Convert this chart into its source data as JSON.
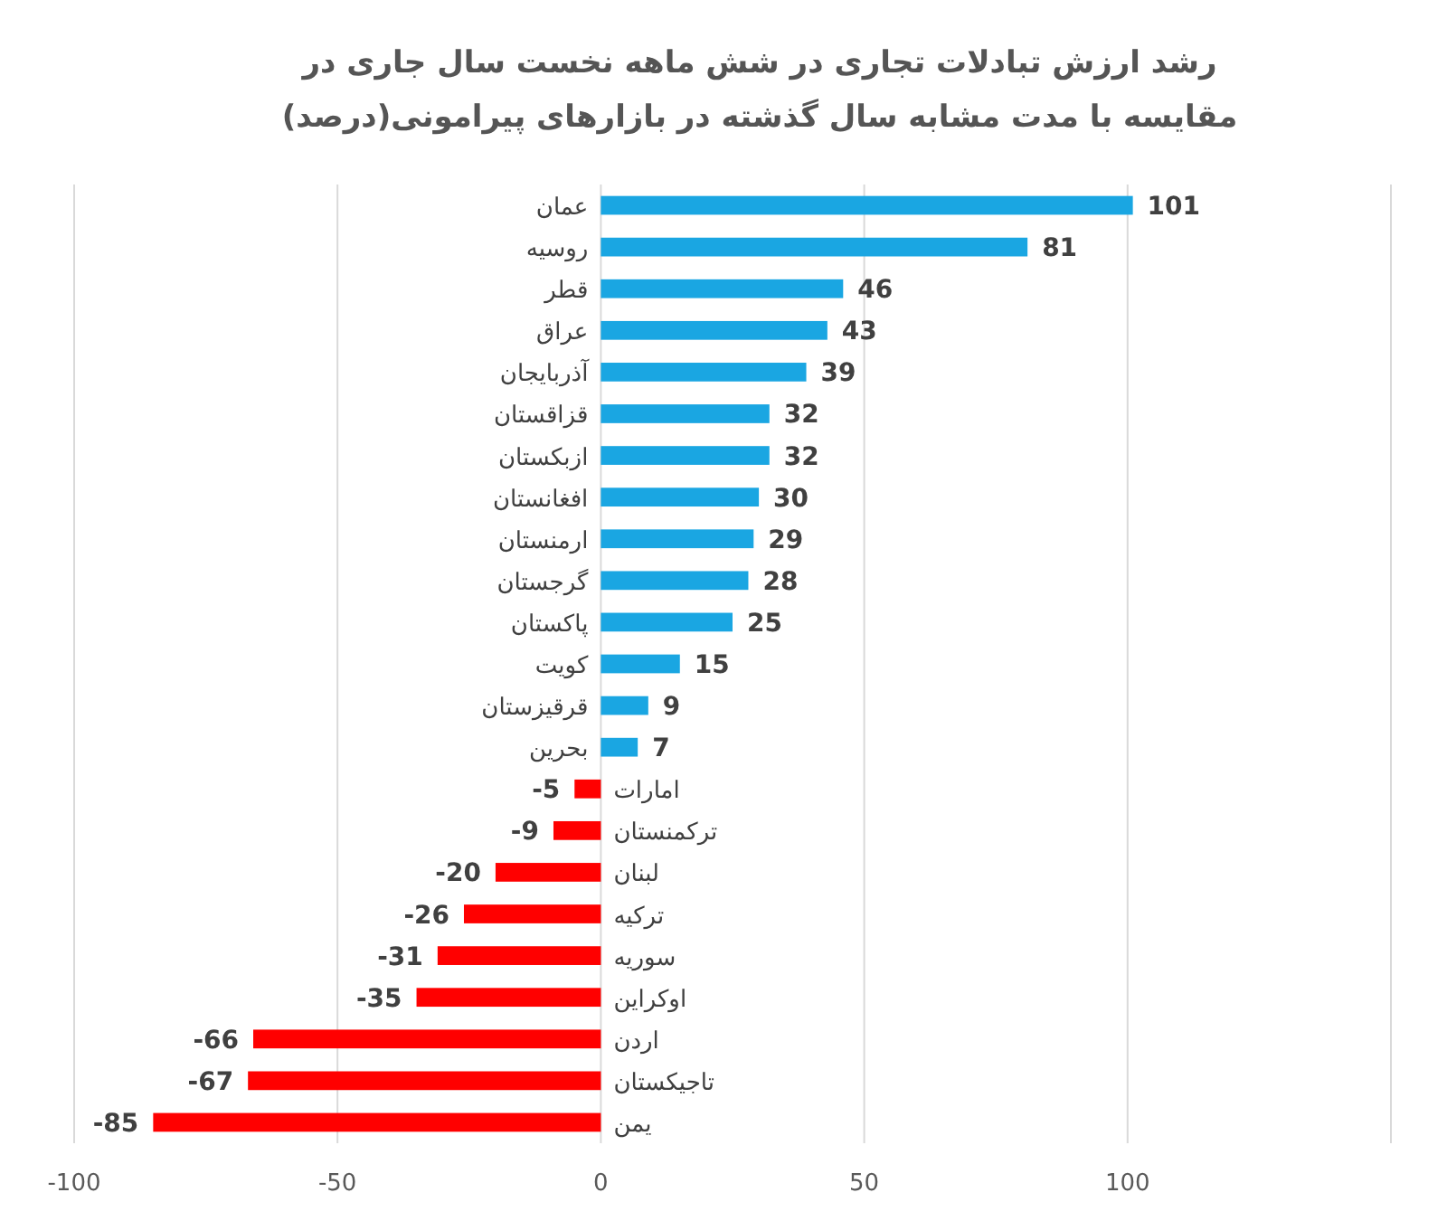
{
  "chart_data": {
    "type": "bar",
    "orientation": "horizontal",
    "title": "رشد ارزش تبادلات تجاری در شش ماهه نخست سال جاری در مقایسه با مدت مشابه سال گذشته در بازارهای پیرامونی(درصد)",
    "categories": [
      "عمان",
      "روسیه",
      "قطر",
      "عراق",
      "آذربایجان",
      "قزاقستان",
      "ازبکستان",
      "افغانستان",
      "ارمنستان",
      "گرجستان",
      "پاکستان",
      "کویت",
      "قرقیزستان",
      "بحرین",
      "امارات",
      "ترکمنستان",
      "لبنان",
      "ترکیه",
      "سوریه",
      "اوکراین",
      "اردن",
      "تاجیکستان",
      "یمن"
    ],
    "values": [
      101,
      81,
      46,
      43,
      39,
      32,
      32,
      30,
      29,
      28,
      25,
      15,
      9,
      7,
      -5,
      -9,
      -20,
      -26,
      -31,
      -35,
      -66,
      -67,
      -85
    ],
    "colors": [
      "#1aa6e2",
      "#1aa6e2",
      "#1aa6e2",
      "#1aa6e2",
      "#1aa6e2",
      "#1aa6e2",
      "#1aa6e2",
      "#1aa6e2",
      "#1aa6e2",
      "#1aa6e2",
      "#1aa6e2",
      "#1aa6e2",
      "#1aa6e2",
      "#1aa6e2",
      "#ff0000",
      "#ff0000",
      "#ff0000",
      "#ff0000",
      "#ff0000",
      "#ff0000",
      "#ff0000",
      "#ff0000",
      "#ff0000"
    ],
    "xlim": [
      -100,
      150
    ],
    "xticks": [
      -100,
      -50,
      0,
      50,
      100,
      {
        "value": 150,
        "label": null
      }
    ],
    "grid": "x",
    "data_labels": true
  }
}
